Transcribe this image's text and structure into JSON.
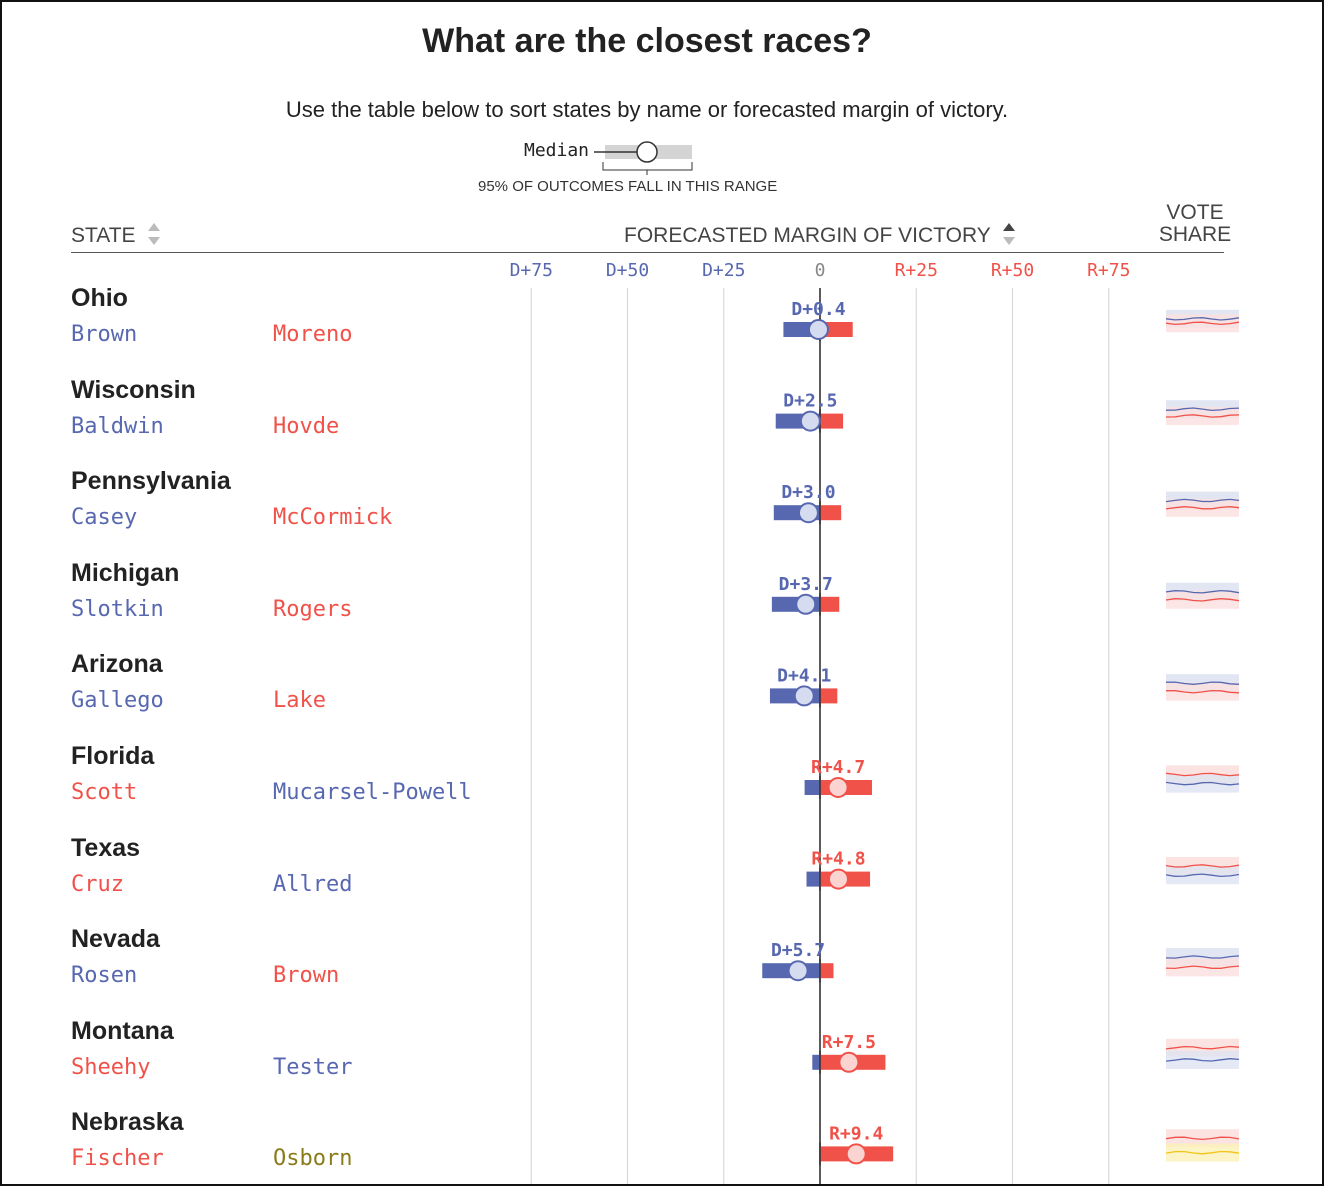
{
  "header": {
    "title": "What are the closest races?",
    "subtitle": "Use the table below to sort states by name or forecasted margin of victory.",
    "legend_median": "Median",
    "legend_range": "95% OF OUTCOMES FALL IN THIS RANGE",
    "col_state": "STATE",
    "col_margin": "FORECASTED MARGIN OF VICTORY",
    "col_vote_line1": "VOTE",
    "col_vote_line2": "SHARE"
  },
  "colors": {
    "dem": "#5768b0",
    "rep": "#f0524a",
    "ind": "#8a7c1a",
    "axis": "#333333",
    "grid": "#d9d9d9"
  },
  "chart_data": {
    "type": "table",
    "axis": {
      "ticks": [
        "D+75",
        "D+50",
        "D+25",
        "0",
        "R+25",
        "R+50",
        "R+75"
      ],
      "tick_values": [
        -75,
        -50,
        -25,
        0,
        25,
        50,
        75
      ],
      "xlim": [
        -75,
        87
      ]
    },
    "rows": [
      {
        "state": "Ohio",
        "cand1": "Brown",
        "cand1_party": "dem",
        "cand2": "Moreno",
        "cand2_party": "rep",
        "label": "D+0.4",
        "median": -0.4,
        "low": -9.5,
        "high": 8.5
      },
      {
        "state": "Wisconsin",
        "cand1": "Baldwin",
        "cand1_party": "dem",
        "cand2": "Hovde",
        "cand2_party": "rep",
        "label": "D+2.5",
        "median": -2.5,
        "low": -11.5,
        "high": 6.0
      },
      {
        "state": "Pennsylvania",
        "cand1": "Casey",
        "cand1_party": "dem",
        "cand2": "McCormick",
        "cand2_party": "rep",
        "label": "D+3.0",
        "median": -3.0,
        "low": -12.0,
        "high": 5.5
      },
      {
        "state": "Michigan",
        "cand1": "Slotkin",
        "cand1_party": "dem",
        "cand2": "Rogers",
        "cand2_party": "rep",
        "label": "D+3.7",
        "median": -3.7,
        "low": -12.5,
        "high": 5.0
      },
      {
        "state": "Arizona",
        "cand1": "Gallego",
        "cand1_party": "dem",
        "cand2": "Lake",
        "cand2_party": "rep",
        "label": "D+4.1",
        "median": -4.1,
        "low": -13.0,
        "high": 4.5
      },
      {
        "state": "Florida",
        "cand1": "Scott",
        "cand1_party": "rep",
        "cand2": "Mucarsel-Powell",
        "cand2_party": "dem",
        "label": "R+4.7",
        "median": 4.7,
        "low": -4.0,
        "high": 13.5
      },
      {
        "state": "Texas",
        "cand1": "Cruz",
        "cand1_party": "rep",
        "cand2": "Allred",
        "cand2_party": "dem",
        "label": "R+4.8",
        "median": 4.8,
        "low": -3.5,
        "high": 13.0
      },
      {
        "state": "Nevada",
        "cand1": "Rosen",
        "cand1_party": "dem",
        "cand2": "Brown",
        "cand2_party": "rep",
        "label": "D+5.7",
        "median": -5.7,
        "low": -15.0,
        "high": 3.5
      },
      {
        "state": "Montana",
        "cand1": "Sheehy",
        "cand1_party": "rep",
        "cand2": "Tester",
        "cand2_party": "dem",
        "label": "R+7.5",
        "median": 7.5,
        "low": -2.0,
        "high": 17.0
      },
      {
        "state": "Nebraska",
        "cand1": "Fischer",
        "cand1_party": "rep",
        "cand2": "Osborn",
        "cand2_party": "ind",
        "label": "R+9.4",
        "median": 9.4,
        "low": 0.0,
        "high": 19.0
      }
    ]
  }
}
